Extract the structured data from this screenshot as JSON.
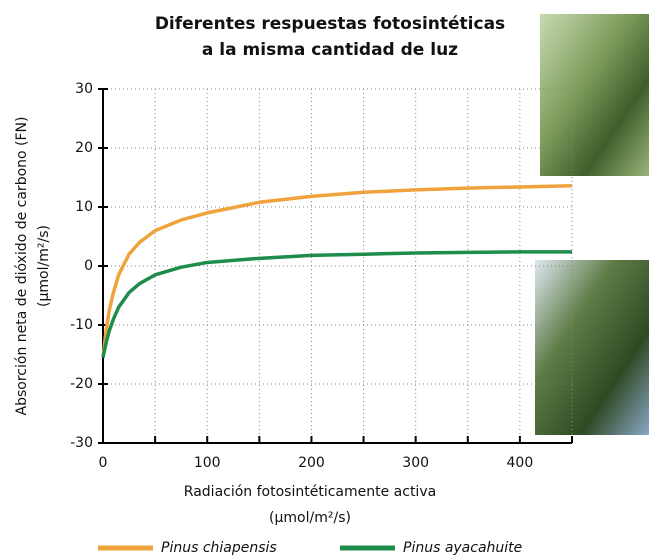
{
  "chart_data": {
    "type": "line",
    "title": [
      "Diferentes respuestas fotosintéticas",
      "a la misma cantidad de luz"
    ],
    "y_label": [
      "Absorción neta de dióxido de carbono (FN)",
      "(µmol/m²/s)"
    ],
    "x_label": [
      "Radiación fotosintéticamente activa",
      "(µmol/m²/s)"
    ],
    "x": [
      0,
      3,
      6,
      10,
      15,
      25,
      35,
      50,
      75,
      100,
      150,
      200,
      250,
      300,
      350,
      400,
      450
    ],
    "series": [
      {
        "name": "Pinus chiapensis",
        "color": "#f0a23c",
        "values": [
          -15.5,
          -11,
          -7.5,
          -4.5,
          -1.5,
          2,
          4,
          6,
          7.8,
          9,
          10.8,
          11.8,
          12.5,
          12.9,
          13.2,
          13.4,
          13.6
        ]
      },
      {
        "name": "Pinus ayacahuite",
        "color": "#1e8c4a",
        "values": [
          -15.5,
          -13,
          -11,
          -9,
          -7,
          -4.5,
          -3,
          -1.5,
          -0.2,
          0.6,
          1.3,
          1.8,
          2.0,
          2.2,
          2.3,
          2.4,
          2.4
        ]
      }
    ],
    "xlim": [
      0,
      450
    ],
    "xticks": [
      0,
      100,
      200,
      300,
      400
    ],
    "ylim": [
      -30,
      30
    ],
    "yticks": [
      -30,
      -20,
      -10,
      0,
      10,
      20,
      30
    ],
    "grid": true,
    "legend": "bottom"
  }
}
